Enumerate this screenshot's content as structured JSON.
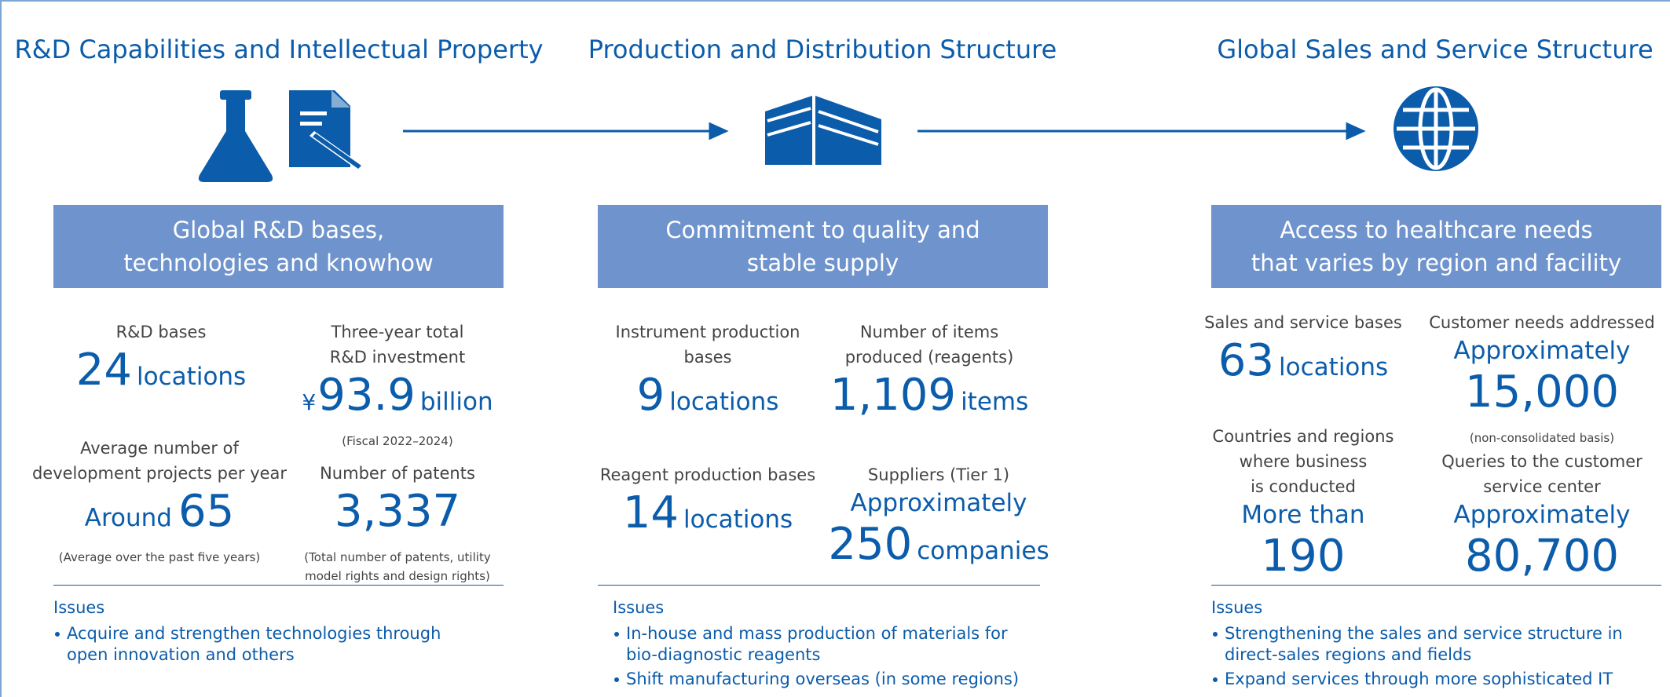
{
  "columns": [
    {
      "heading": "R&D Capabilities and Intellectual Property",
      "box": [
        "Global R&D bases,",
        "technologies and knowhow"
      ],
      "stats": [
        {
          "label": [
            "R&D bases"
          ],
          "value": "24",
          "unit": "locations"
        },
        {
          "label": [
            "Three-year total",
            "R&D investment"
          ],
          "prefix": "¥",
          "value": "93.9",
          "unit": "billion",
          "note": [
            "(Fiscal 2022–2024)"
          ]
        },
        {
          "label": [
            "Average number of",
            "development projects per year"
          ],
          "prefix": "Around",
          "value": "65",
          "note": [
            "(Average over the past five years)"
          ]
        },
        {
          "label": [
            "Number of patents"
          ],
          "value": "3,337",
          "note": [
            "(Total number of patents, utility",
            "model rights and design rights)"
          ]
        }
      ],
      "issues_title": "Issues",
      "issues": [
        [
          "Acquire and strengthen technologies through",
          "open innovation and others"
        ]
      ]
    },
    {
      "heading": "Production and Distribution Structure",
      "box": [
        "Commitment to quality and",
        "stable supply"
      ],
      "stats": [
        {
          "label": [
            "Instrument production",
            "bases"
          ],
          "value": "9",
          "unit": "locations"
        },
        {
          "label": [
            "Number of items",
            "produced (reagents)"
          ],
          "value": "1,109",
          "unit": "items"
        },
        {
          "label": [
            "Reagent production bases"
          ],
          "value": "14",
          "unit": "locations"
        },
        {
          "label": [
            "Suppliers (Tier 1)"
          ],
          "qualifier": "Approximately",
          "value": "250",
          "unit": "companies"
        }
      ],
      "issues_title": "Issues",
      "issues": [
        [
          "In-house and mass production of materials for",
          "bio-diagnostic reagents"
        ],
        [
          "Shift manufacturing overseas (in some regions)"
        ]
      ]
    },
    {
      "heading": "Global Sales and Service Structure",
      "box": [
        "Access to healthcare needs",
        "that varies by region and facility"
      ],
      "stats": [
        {
          "label": [
            "Sales and service bases"
          ],
          "value": "63",
          "unit": "locations"
        },
        {
          "label": [
            "Customer needs addressed"
          ],
          "qualifier": "Approximately",
          "value": "15,000",
          "note": [
            "(non-consolidated basis)"
          ]
        },
        {
          "label": [
            "Countries and regions",
            "where business",
            "is conducted"
          ],
          "qualifier": "More than",
          "value": "190"
        },
        {
          "label": [
            "Queries to the customer",
            "service center"
          ],
          "qualifier": "Approximately",
          "value": "80,700"
        }
      ],
      "issues_title": "Issues",
      "issues": [
        [
          "Strengthening the sales and service structure in",
          "direct-sales regions and fields"
        ],
        [
          "Expand services through more sophisticated IT"
        ]
      ]
    }
  ]
}
